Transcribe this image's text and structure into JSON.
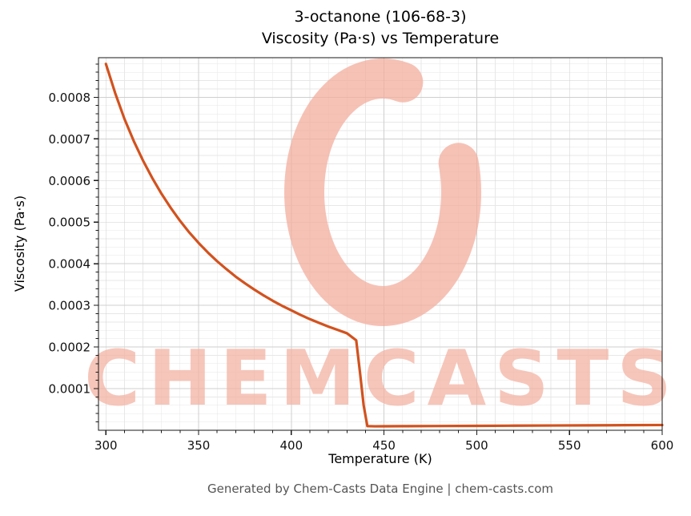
{
  "title": {
    "line1": "3-octanone (106-68-3)",
    "line2": "Viscosity (Pa·s) vs Temperature"
  },
  "footer": "Generated by Chem-Casts Data Engine | chem-casts.com",
  "watermark": {
    "text": "CHEMCASTS",
    "text_color": "#f4b3a3",
    "logo_color": "#f3ad9d",
    "logo_name": "chem-casts-ring-logo"
  },
  "chart_data": {
    "type": "line",
    "title": "3-octanone (106-68-3) Viscosity (Pa·s) vs Temperature",
    "xlabel": "Temperature (K)",
    "ylabel": "Viscosity (Pa·s)",
    "xlim": [
      296,
      600
    ],
    "ylim": [
      0,
      0.000895
    ],
    "x_ticks": [
      300,
      350,
      400,
      450,
      500,
      550,
      600
    ],
    "y_ticks": [
      0.0001,
      0.0002,
      0.0003,
      0.0004,
      0.0005,
      0.0006,
      0.0007,
      0.0008
    ],
    "grid": true,
    "legend": "none",
    "line_color": "#d2521e",
    "series": [
      {
        "name": "viscosity",
        "x": [
          300,
          305,
          310,
          315,
          320,
          325,
          330,
          335,
          340,
          345,
          350,
          355,
          360,
          365,
          370,
          375,
          380,
          385,
          390,
          395,
          400,
          405,
          410,
          415,
          420,
          425,
          430,
          435,
          437,
          439,
          441,
          445,
          450,
          460,
          480,
          500,
          520,
          540,
          560,
          580,
          600
        ],
        "y": [
          0.00088,
          0.00081,
          0.000748,
          0.000695,
          0.000648,
          0.000606,
          0.000568,
          0.000534,
          0.000503,
          0.000475,
          0.00045,
          0.000427,
          0.000406,
          0.000387,
          0.000369,
          0.000353,
          0.000338,
          0.000324,
          0.000311,
          0.000299,
          0.000288,
          0.000277,
          0.000267,
          0.000258,
          0.000249,
          0.000241,
          0.000233,
          0.000216,
          0.00014,
          6e-05,
          1e-05,
          9.5e-06,
          9.6e-06,
          9.8e-06,
          1.02e-05,
          1.06e-05,
          1.1e-05,
          1.14e-05,
          1.18e-05,
          1.22e-05,
          1.26e-05
        ]
      }
    ]
  }
}
